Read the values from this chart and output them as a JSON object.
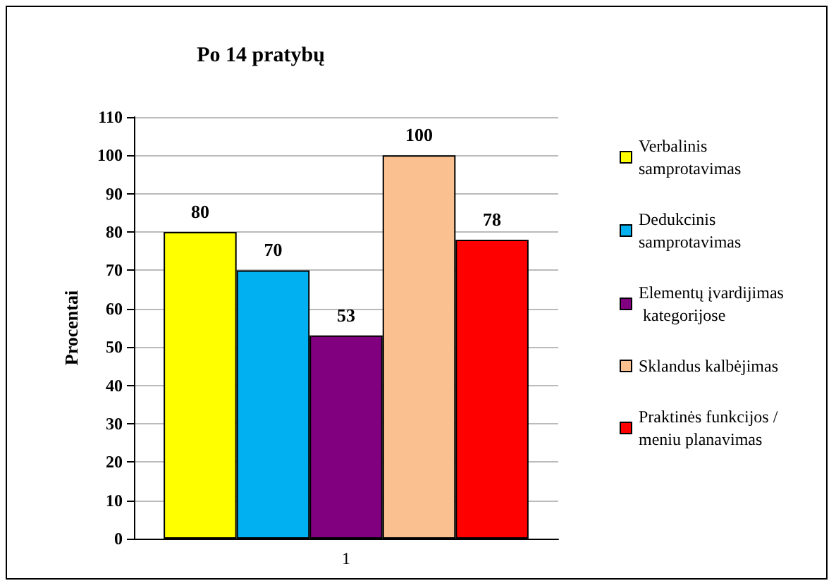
{
  "chart_data": {
    "type": "bar",
    "title": "Po 14 pratybų",
    "ylabel": "Procentai",
    "categories": [
      "1"
    ],
    "series": [
      {
        "name": "Verbalinis samprotavimas",
        "color": "#ffff00",
        "values": [
          80
        ]
      },
      {
        "name": "Dedukcinis samprotavimas",
        "color": "#00b0f0",
        "values": [
          70
        ]
      },
      {
        "name": "Elementų įvardijimas kategorijose",
        "color": "#800080",
        "values": [
          53
        ]
      },
      {
        "name": "Sklandus kalbėjimas",
        "color": "#fac090",
        "values": [
          100
        ]
      },
      {
        "name": "Praktinės funkcijos / meniu planavimas",
        "color": "#ff0000",
        "values": [
          78
        ]
      }
    ],
    "ylim": [
      0,
      110
    ],
    "yticks": [
      0,
      10,
      20,
      30,
      40,
      50,
      60,
      70,
      80,
      90,
      100,
      110
    ],
    "grid": "y",
    "legend": "right",
    "data_labels": true
  }
}
